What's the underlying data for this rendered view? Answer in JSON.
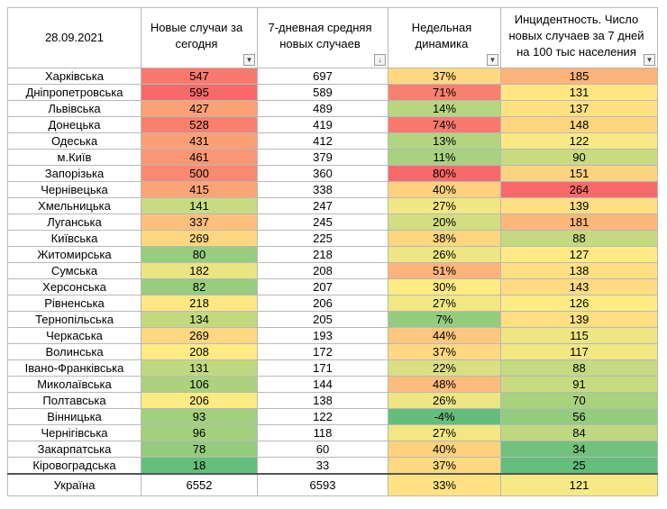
{
  "header": {
    "date": "28.09.2021",
    "col1": "Новые случаи за сегодня",
    "col2": "7-дневная средняя новых случаев",
    "col3": "Недельная динамика",
    "col4": "Инцидентность. Число новых случаев за 7 дней на 100 тыс населения"
  },
  "rows": [
    {
      "region": "Харківська",
      "cases": "547",
      "avg7": "697",
      "dyn": "37%",
      "inc": "185"
    },
    {
      "region": "Дніпропетровська",
      "cases": "595",
      "avg7": "589",
      "dyn": "71%",
      "inc": "131"
    },
    {
      "region": "Львівська",
      "cases": "427",
      "avg7": "489",
      "dyn": "14%",
      "inc": "137"
    },
    {
      "region": "Донецька",
      "cases": "528",
      "avg7": "419",
      "dyn": "74%",
      "inc": "148"
    },
    {
      "region": "Одеська",
      "cases": "431",
      "avg7": "412",
      "dyn": "13%",
      "inc": "122"
    },
    {
      "region": "м.Київ",
      "cases": "461",
      "avg7": "379",
      "dyn": "11%",
      "inc": "90"
    },
    {
      "region": "Запорізька",
      "cases": "500",
      "avg7": "360",
      "dyn": "80%",
      "inc": "151"
    },
    {
      "region": "Чернівецька",
      "cases": "415",
      "avg7": "338",
      "dyn": "40%",
      "inc": "264"
    },
    {
      "region": "Хмельницька",
      "cases": "141",
      "avg7": "247",
      "dyn": "27%",
      "inc": "139"
    },
    {
      "region": "Луганська",
      "cases": "337",
      "avg7": "245",
      "dyn": "20%",
      "inc": "181"
    },
    {
      "region": "Київська",
      "cases": "269",
      "avg7": "225",
      "dyn": "38%",
      "inc": "88"
    },
    {
      "region": "Житомирська",
      "cases": "80",
      "avg7": "218",
      "dyn": "26%",
      "inc": "127"
    },
    {
      "region": "Сумська",
      "cases": "182",
      "avg7": "208",
      "dyn": "51%",
      "inc": "138"
    },
    {
      "region": "Херсонська",
      "cases": "82",
      "avg7": "207",
      "dyn": "30%",
      "inc": "143"
    },
    {
      "region": "Рівненська",
      "cases": "218",
      "avg7": "206",
      "dyn": "27%",
      "inc": "126"
    },
    {
      "region": "Тернопільська",
      "cases": "134",
      "avg7": "205",
      "dyn": "7%",
      "inc": "139"
    },
    {
      "region": "Черкаська",
      "cases": "269",
      "avg7": "193",
      "dyn": "44%",
      "inc": "115"
    },
    {
      "region": "Волинська",
      "cases": "208",
      "avg7": "172",
      "dyn": "37%",
      "inc": "117"
    },
    {
      "region": "Івано-Франківська",
      "cases": "131",
      "avg7": "171",
      "dyn": "22%",
      "inc": "88"
    },
    {
      "region": "Миколаївська",
      "cases": "106",
      "avg7": "144",
      "dyn": "48%",
      "inc": "91"
    },
    {
      "region": "Полтавська",
      "cases": "206",
      "avg7": "138",
      "dyn": "26%",
      "inc": "70"
    },
    {
      "region": "Вінницька",
      "cases": "93",
      "avg7": "122",
      "dyn": "-4%",
      "inc": "56"
    },
    {
      "region": "Чернігівська",
      "cases": "96",
      "avg7": "118",
      "dyn": "27%",
      "inc": "84"
    },
    {
      "region": "Закарпатська",
      "cases": "78",
      "avg7": "60",
      "dyn": "40%",
      "inc": "34"
    },
    {
      "region": "Кіровоградська",
      "cases": "18",
      "avg7": "33",
      "dyn": "37%",
      "inc": "25"
    }
  ],
  "total": {
    "region": "Україна",
    "cases": "6552",
    "avg7": "6593",
    "dyn": "33%",
    "inc": "121"
  },
  "colors": {
    "green": "#63be7b",
    "yellow": "#ffeb84",
    "red": "#f8696b",
    "border": "#b8b8b8"
  }
}
